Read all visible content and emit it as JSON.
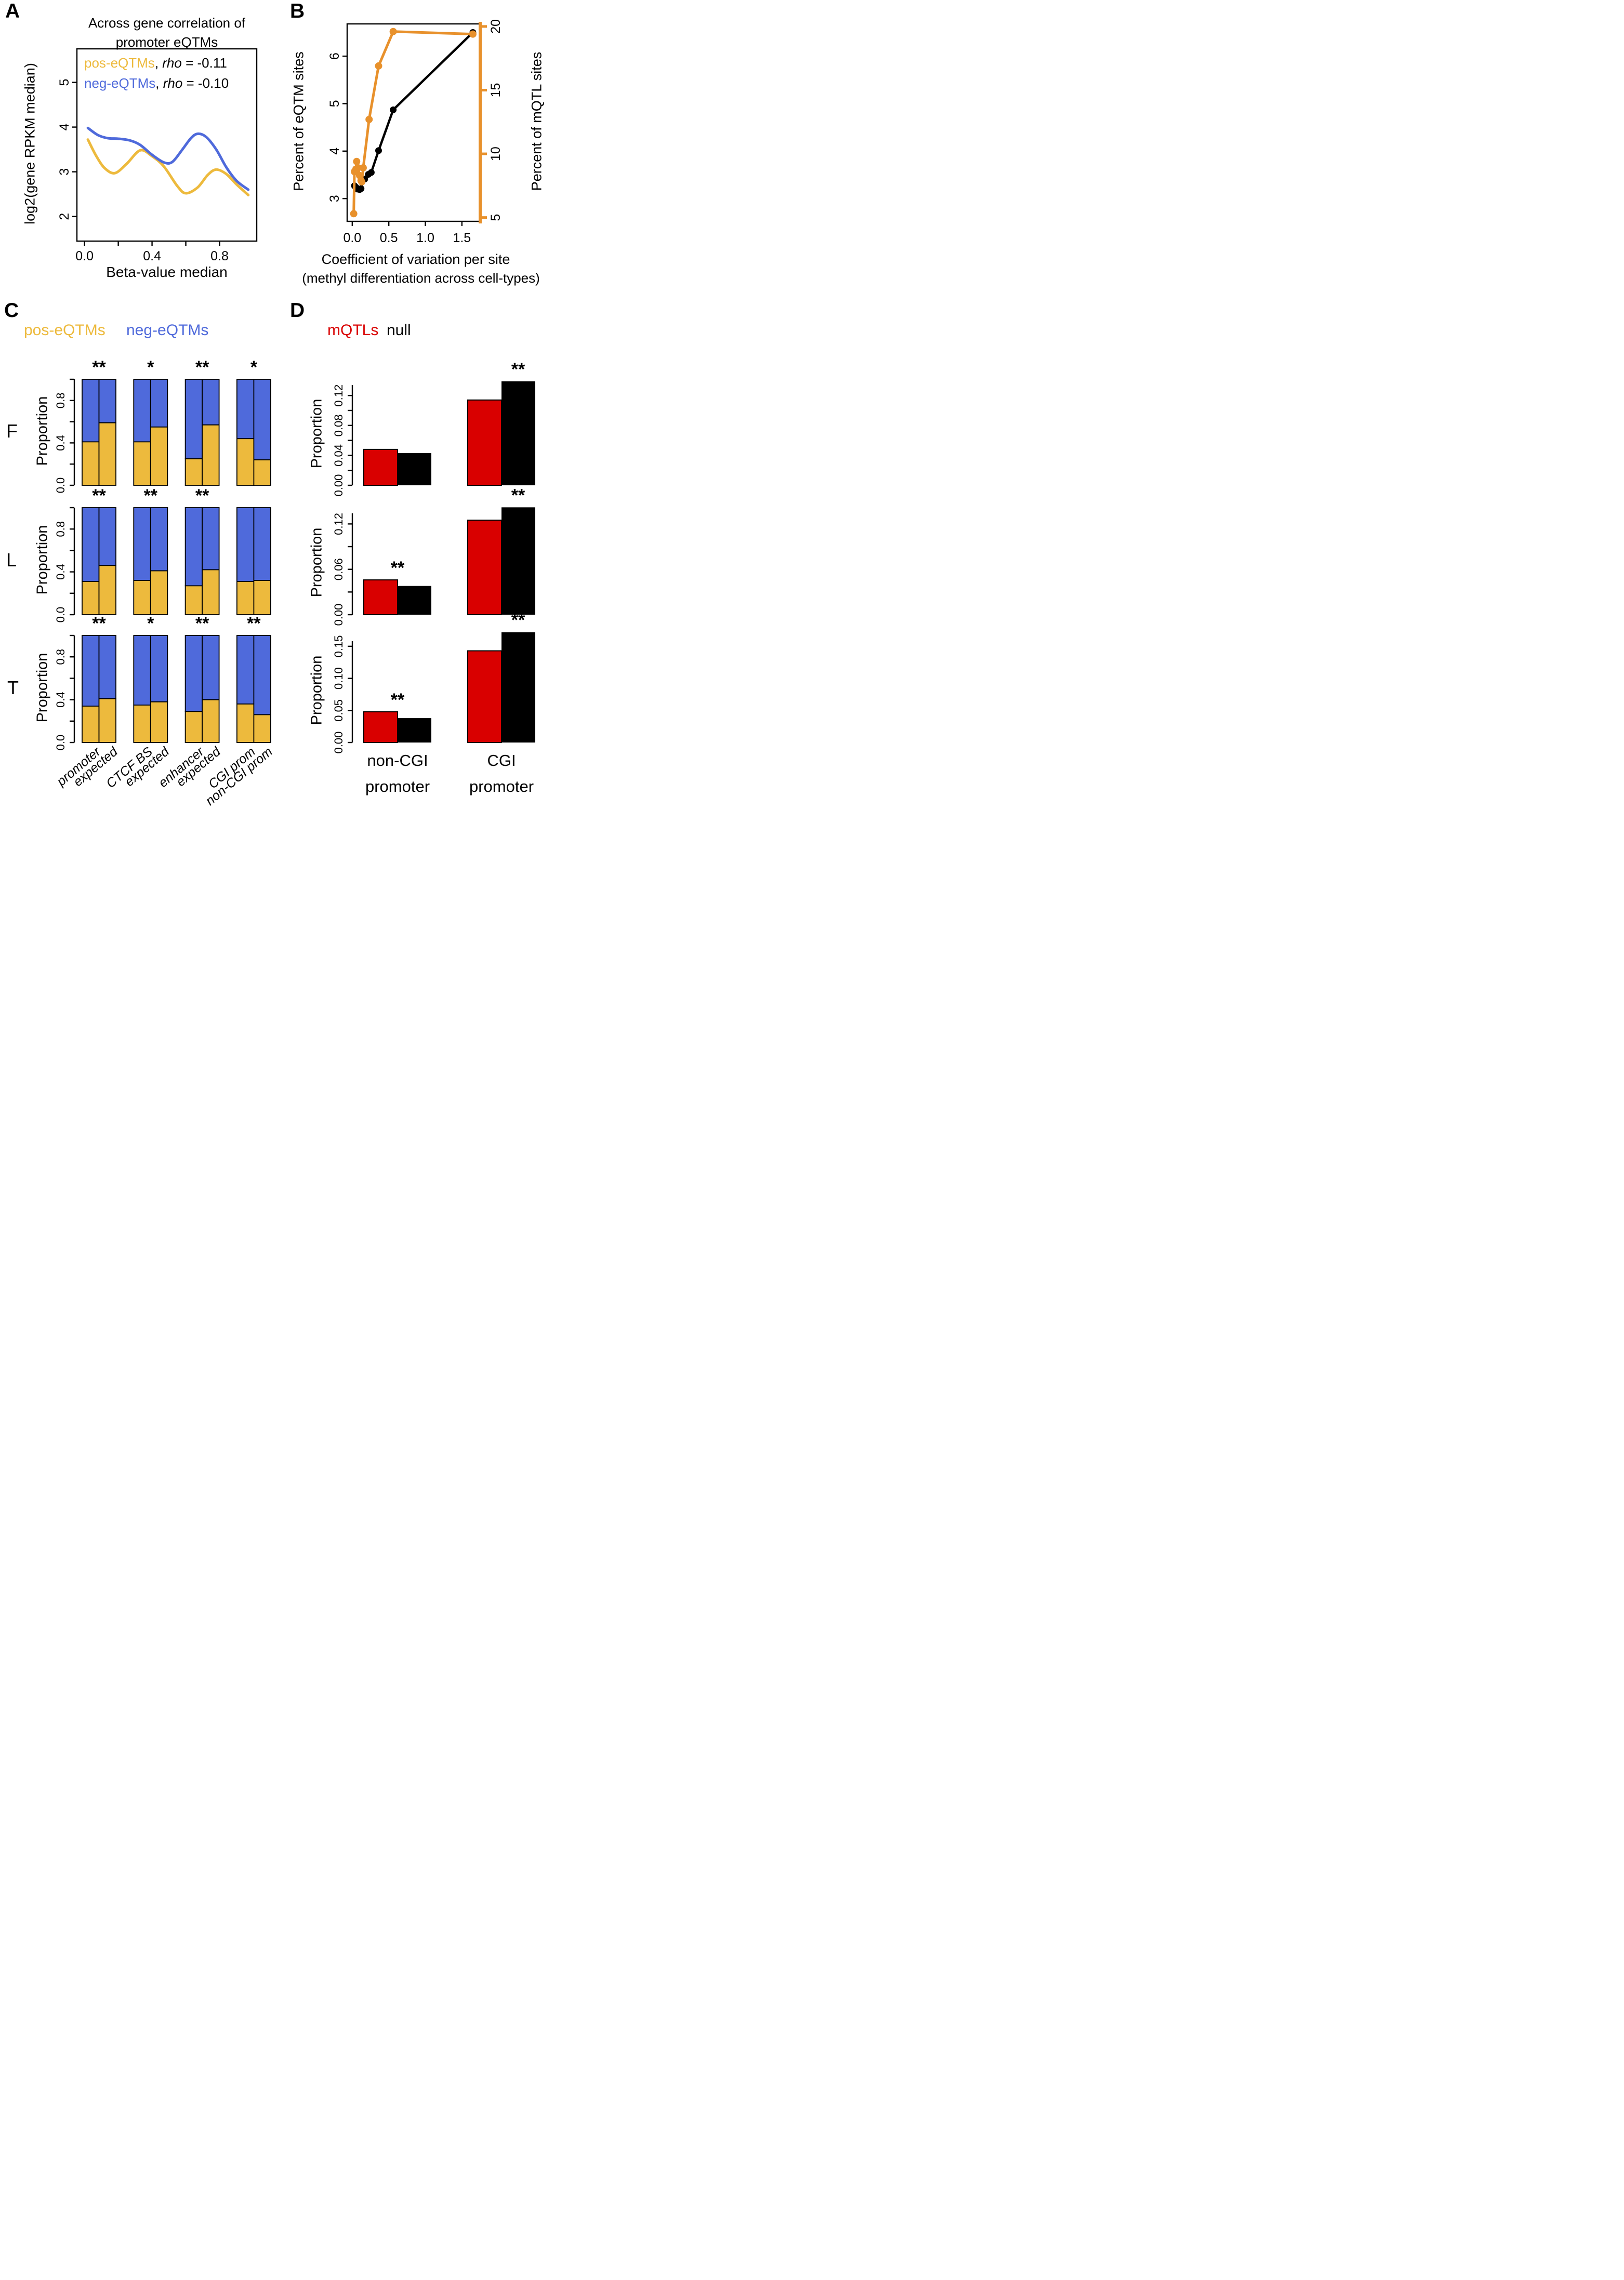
{
  "colors": {
    "gold": "#EDBA3D",
    "blue": "#4F6ADB",
    "orange": "#E8912C",
    "red": "#D90000",
    "black": "#000000"
  },
  "panels": {
    "A": {
      "letter": "A",
      "title_line1": "Across gene correlation of",
      "title_line2": "promoter eQTMs",
      "xlabel": "Beta-value median",
      "ylabel": "log2(gene RPKM median)",
      "legend": [
        {
          "label": "pos-eQTMs",
          "sep": ", ",
          "rho_word": "rho",
          "rho_value": " = -0.11",
          "color_key": "gold"
        },
        {
          "label": "neg-eQTMs",
          "sep": ", ",
          "rho_word": "rho",
          "rho_value": " = -0.10",
          "color_key": "blue"
        }
      ]
    },
    "B": {
      "letter": "B",
      "ylabel_left": "Percent of eQTM sites",
      "ylabel_right": "Percent of mQTL sites",
      "xlabel_line1": "Coefficient of variation per site",
      "xlabel_line2": "(methyl differentiation across cell-types)"
    },
    "C": {
      "letter": "C",
      "legend": [
        {
          "label": "pos-eQTMs",
          "color_key": "gold"
        },
        {
          "label": "neg-eQTMs",
          "color_key": "blue"
        }
      ],
      "ylabel": "Proportion",
      "row_labels": [
        "F",
        "L",
        "T"
      ]
    },
    "D": {
      "letter": "D",
      "legend": [
        {
          "label": "mQTLs",
          "color_key": "red"
        },
        {
          "label": "null",
          "color_key": "black"
        }
      ],
      "ylabel": "Proportion"
    }
  },
  "chart_data": [
    {
      "panel": "A",
      "type": "line",
      "title": "Across gene correlation of promoter eQTMs",
      "xlabel": "Beta-value median",
      "ylabel": "log2(gene RPKM median)",
      "xlim": [
        -0.045,
        1.02
      ],
      "ylim": [
        1.45,
        5.75
      ],
      "xticks": [
        0,
        0.2,
        0.4,
        0.6,
        0.8
      ],
      "xtick_labels": [
        "0.0",
        "",
        "0.4",
        "",
        "0.8"
      ],
      "yticks": [
        2,
        3,
        4,
        5
      ],
      "ytick_labels": [
        "2",
        "3",
        "4",
        "5"
      ],
      "legend_position": "top-left-inside",
      "series": [
        {
          "name": "pos-eQTMs",
          "rho": -0.11,
          "color_key": "gold",
          "x": [
            0.02,
            0.07,
            0.12,
            0.18,
            0.25,
            0.33,
            0.4,
            0.47,
            0.55,
            0.6,
            0.67,
            0.73,
            0.78,
            0.84,
            0.9,
            0.97
          ],
          "y": [
            3.72,
            3.35,
            3.08,
            2.97,
            3.18,
            3.48,
            3.35,
            3.12,
            2.68,
            2.52,
            2.65,
            2.93,
            3.05,
            2.95,
            2.72,
            2.48
          ]
        },
        {
          "name": "neg-eQTMs",
          "rho": -0.1,
          "color_key": "blue",
          "x": [
            0.02,
            0.08,
            0.14,
            0.2,
            0.27,
            0.33,
            0.4,
            0.47,
            0.52,
            0.58,
            0.63,
            0.67,
            0.72,
            0.78,
            0.84,
            0.9,
            0.97
          ],
          "y": [
            3.98,
            3.82,
            3.75,
            3.74,
            3.7,
            3.6,
            3.38,
            3.21,
            3.22,
            3.5,
            3.75,
            3.85,
            3.78,
            3.5,
            3.1,
            2.8,
            2.6
          ]
        }
      ]
    },
    {
      "panel": "B",
      "type": "line-dual-axis",
      "xlabel": "Coefficient of variation per site (methyl differentiation across cell-types)",
      "ylabel_left": "Percent of eQTM sites",
      "ylabel_right": "Percent of mQTL sites",
      "xlim": [
        -0.07,
        1.75
      ],
      "ylim_left": [
        2.52,
        6.68
      ],
      "ylim_right": [
        4.7,
        20.2
      ],
      "xticks": [
        0,
        0.5,
        1.0,
        1.5
      ],
      "xtick_labels": [
        "0.0",
        "0.5",
        "1.0",
        "1.5"
      ],
      "yticks_left": [
        3,
        4,
        5,
        6
      ],
      "ytick_labels_left": [
        "3",
        "4",
        "5",
        "6"
      ],
      "yticks_right": [
        5,
        10,
        15,
        20
      ],
      "ytick_labels_right": [
        "5",
        "10",
        "15",
        "20"
      ],
      "series": [
        {
          "name": "eQTM sites",
          "axis": "left",
          "color_key": "black",
          "marker": "circle",
          "x": [
            0.03,
            0.05,
            0.07,
            0.1,
            0.12,
            0.14,
            0.17,
            0.22,
            0.26,
            0.36,
            0.56,
            1.65
          ],
          "y": [
            3.27,
            3.24,
            3.2,
            3.19,
            3.21,
            3.38,
            3.41,
            3.51,
            3.55,
            4.01,
            4.87,
            6.5
          ]
        },
        {
          "name": "mQTL sites",
          "axis": "right",
          "color_key": "orange",
          "marker": "circle",
          "x": [
            0.02,
            0.03,
            0.05,
            0.06,
            0.08,
            0.1,
            0.12,
            0.13,
            0.15,
            0.23,
            0.36,
            0.56,
            1.65
          ],
          "y": [
            5.3,
            8.6,
            8.8,
            9.4,
            8.9,
            8.3,
            7.9,
            7.8,
            8.9,
            12.7,
            16.9,
            19.6,
            19.4
          ]
        }
      ]
    },
    {
      "panel": "C",
      "type": "stacked-bar-grid",
      "ylabel": "Proportion",
      "ylim": [
        0,
        1
      ],
      "yticks": [
        0,
        0.2,
        0.4,
        0.6,
        0.8,
        1.0
      ],
      "ytick_labels": [
        "0.0",
        "",
        "0.4",
        "",
        "0.8",
        ""
      ],
      "stack_series": [
        "pos-eQTMs",
        "neg-eQTMs"
      ],
      "categories": [
        "promoter",
        "expected",
        "CTCF BS",
        "expected",
        "enhancer",
        "expected",
        "CGI prom",
        "non-CGI prom"
      ],
      "rows": [
        {
          "label": "F",
          "pos_values": [
            0.41,
            0.59,
            0.41,
            0.55,
            0.25,
            0.57,
            0.44,
            0.24
          ],
          "stars": [
            "**",
            "*",
            "**",
            "*"
          ]
        },
        {
          "label": "L",
          "pos_values": [
            0.31,
            0.46,
            0.32,
            0.41,
            0.27,
            0.42,
            0.31,
            0.32
          ],
          "stars": [
            "**",
            "**",
            "**",
            ""
          ]
        },
        {
          "label": "T",
          "pos_values": [
            0.34,
            0.41,
            0.35,
            0.38,
            0.29,
            0.4,
            0.36,
            0.26
          ],
          "stars": [
            "**",
            "*",
            "**",
            "**"
          ]
        }
      ]
    },
    {
      "panel": "D",
      "type": "grouped-bar-grid",
      "ylabel": "Proportion",
      "series_names": [
        "mQTLs",
        "null"
      ],
      "categories": [
        "non-CGI promoter",
        "CGI promoter"
      ],
      "category_lines": [
        [
          "non-CGI",
          "promoter"
        ],
        [
          "CGI",
          "promoter"
        ]
      ],
      "rows": [
        {
          "row": "F",
          "ylim": [
            0,
            0.134
          ],
          "yticks": [
            0,
            0.02,
            0.04,
            0.06,
            0.08,
            0.1,
            0.12
          ],
          "ytick_labels": [
            "0.00",
            "",
            "0.04",
            "",
            "0.08",
            "",
            "0.12"
          ],
          "mqtls": [
            0.048,
            0.114
          ],
          "null": [
            0.043,
            0.139
          ],
          "stars": [
            "",
            "**"
          ]
        },
        {
          "row": "L",
          "ylim": [
            0,
            0.134
          ],
          "yticks": [
            0,
            0.03,
            0.06,
            0.09,
            0.12
          ],
          "ytick_labels": [
            "0.00",
            "",
            "0.06",
            "",
            "0.12"
          ],
          "mqtls": [
            0.046,
            0.125
          ],
          "null": [
            0.038,
            0.142
          ],
          "stars": [
            "**",
            "**"
          ]
        },
        {
          "row": "T",
          "ylim": [
            0,
            0.158
          ],
          "yticks": [
            0,
            0.05,
            0.1,
            0.15
          ],
          "ytick_labels": [
            "0.00",
            "0.05",
            "0.10",
            "0.15"
          ],
          "mqtls": [
            0.048,
            0.143
          ],
          "null": [
            0.038,
            0.172
          ],
          "stars": [
            "**",
            "**"
          ]
        }
      ]
    }
  ]
}
